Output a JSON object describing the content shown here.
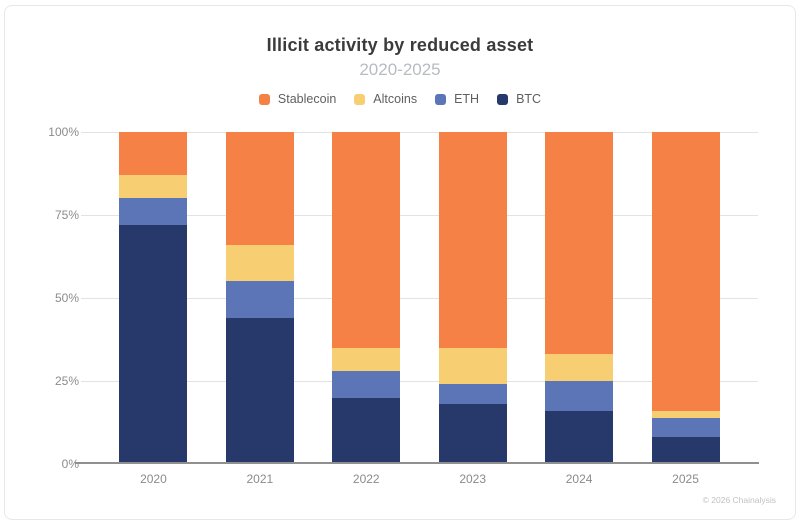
{
  "header": {
    "title": "Illicit activity by reduced asset",
    "subtitle": "2020-2025"
  },
  "footer": {
    "copyright": "© 2026 Chainalysis"
  },
  "chart_data": {
    "type": "bar",
    "stacked": true,
    "title": "Illicit activity by reduced asset",
    "subtitle": "2020-2025",
    "categories": [
      "2020",
      "2021",
      "2022",
      "2023",
      "2024",
      "2025"
    ],
    "unit": "%",
    "ylim": [
      0,
      100
    ],
    "y_ticks": [
      "0%",
      "25%",
      "50%",
      "75%",
      "100%"
    ],
    "grid": true,
    "legend_position": "top",
    "legend_order": [
      "Stablecoin",
      "Altcoins",
      "ETH",
      "BTC"
    ],
    "series": [
      {
        "name": "BTC",
        "color": "#27396B",
        "values": [
          72,
          44,
          20,
          18,
          16,
          8
        ]
      },
      {
        "name": "ETH",
        "color": "#5C75B6",
        "values": [
          8,
          11,
          8,
          6,
          9,
          6
        ]
      },
      {
        "name": "Altcoins",
        "color": "#F8CE73",
        "values": [
          7,
          11,
          7,
          11,
          8,
          2
        ]
      },
      {
        "name": "Stablecoin",
        "color": "#F58147",
        "values": [
          13,
          34,
          65,
          65,
          67,
          84
        ]
      }
    ]
  }
}
